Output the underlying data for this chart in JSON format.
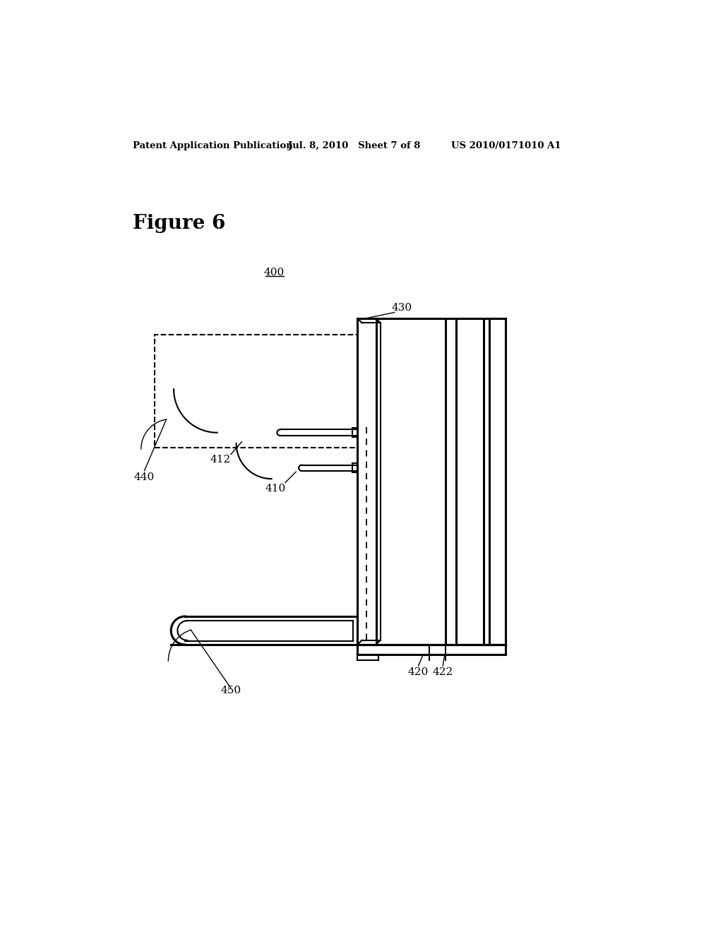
{
  "header_left": "Patent Application Publication",
  "header_mid": "Jul. 8, 2010   Sheet 7 of 8",
  "header_right": "US 2010/0171010 A1",
  "figure_label": "Figure 6",
  "ref_400": "400",
  "ref_410": "410",
  "ref_412": "412",
  "ref_420": "420",
  "ref_422": "422",
  "ref_430": "430",
  "ref_440": "440",
  "ref_450": "450",
  "bg_color": "#ffffff",
  "line_color": "#000000"
}
